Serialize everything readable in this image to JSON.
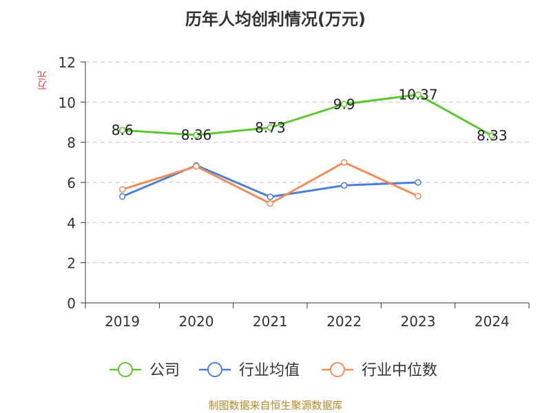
{
  "chart_data": {
    "type": "line",
    "title": "历年人均创利情况(万元)",
    "xlabel": "",
    "ylabel": "万元",
    "categories": [
      "2019",
      "2020",
      "2021",
      "2022",
      "2023",
      "2024"
    ],
    "ylim": [
      0,
      12
    ],
    "yticks": [
      0,
      2,
      4,
      6,
      8,
      10,
      12
    ],
    "grid": true,
    "legend_position": "bottom",
    "series": [
      {
        "name": "公司",
        "color": "#5cc72a",
        "values": [
          8.6,
          8.36,
          8.73,
          9.9,
          10.37,
          8.33
        ],
        "labels": [
          "8.6",
          "8.36",
          "8.73",
          "9.9",
          "10.37",
          "8.33"
        ]
      },
      {
        "name": "行业均值",
        "color": "#4d7fd8",
        "values": [
          5.3,
          6.85,
          5.28,
          5.85,
          6.0,
          null
        ]
      },
      {
        "name": "行业中位数",
        "color": "#f28c57",
        "values": [
          5.65,
          6.8,
          4.95,
          7.0,
          5.32,
          null
        ]
      }
    ]
  },
  "footer": {
    "source": "制图数据来自恒生聚源数据库"
  }
}
